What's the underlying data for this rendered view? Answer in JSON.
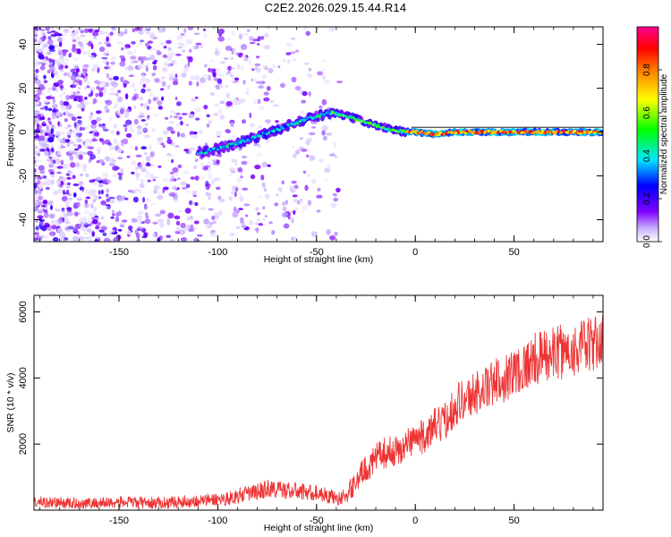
{
  "title": "C2E2.2026.029.15.44.R14",
  "chart_data": [
    {
      "type": "heatmap",
      "title": "C2E2.2026.029.15.44.R14",
      "xlabel": "Height of straight line (km)",
      "ylabel": "Frequency (Hz)",
      "xlim": [
        -193,
        95
      ],
      "ylim": [
        -50,
        48
      ],
      "xticks": [
        -150,
        -100,
        -50,
        0,
        50
      ],
      "xtick_labels": [
        "-150",
        "-100",
        "-50",
        "0",
        "50"
      ],
      "yticks": [
        -40,
        -20,
        0,
        20,
        40
      ],
      "ytick_labels": [
        "-40",
        "-20",
        "0",
        "20",
        "40"
      ],
      "colorbar": {
        "label": "Normalized spectral amplitude",
        "range": [
          0.0,
          1.0
        ],
        "ticks": [
          0.0,
          0.2,
          0.4,
          0.6,
          0.8
        ],
        "tick_labels": [
          "0.0",
          "0.2",
          "0.4",
          "0.6",
          "0.8"
        ],
        "colors": [
          "#ffffff",
          "#7f00ff",
          "#0000ff",
          "#00ffff",
          "#00ff00",
          "#ffff00",
          "#ff8000",
          "#ff0000",
          "#ff00ff"
        ]
      },
      "signal_track": [
        {
          "x": -110,
          "y": -10
        },
        {
          "x": -90,
          "y": -5
        },
        {
          "x": -70,
          "y": 1
        },
        {
          "x": -55,
          "y": 6
        },
        {
          "x": -42,
          "y": 9
        },
        {
          "x": -30,
          "y": 6
        },
        {
          "x": -20,
          "y": 3
        },
        {
          "x": -10,
          "y": 0.5
        },
        {
          "x": 0,
          "y": 0
        },
        {
          "x": 10,
          "y": -1
        },
        {
          "x": 20,
          "y": 0
        },
        {
          "x": 50,
          "y": 0
        },
        {
          "x": 95,
          "y": 0
        }
      ],
      "noise_region_xlim": [
        -193,
        -40
      ]
    },
    {
      "type": "line",
      "xlabel": "Height of straight line (km)",
      "ylabel": "SNR (10 * v/v)",
      "xlim": [
        -193,
        95
      ],
      "ylim": [
        0,
        6500
      ],
      "xticks": [
        -150,
        -100,
        -50,
        0,
        50
      ],
      "xtick_labels": [
        "-150",
        "-100",
        "-50",
        "0",
        "50"
      ],
      "yticks": [
        2000,
        4000,
        6000
      ],
      "ytick_labels": [
        "2000",
        "4000",
        "6000"
      ],
      "line_color": "#ee3333",
      "series": [
        {
          "name": "SNR",
          "x": [
            -193,
            -170,
            -150,
            -130,
            -110,
            -95,
            -85,
            -80,
            -75,
            -65,
            -55,
            -48,
            -42,
            -38,
            -34,
            -30,
            -26,
            -22,
            -18,
            -14,
            -10,
            -6,
            -2,
            2,
            6,
            10,
            14,
            18,
            22,
            26,
            30,
            35,
            40,
            45,
            50,
            55,
            60,
            65,
            70,
            75,
            80,
            85,
            90,
            95
          ],
          "values": [
            250,
            200,
            240,
            220,
            280,
            350,
            500,
            550,
            650,
            600,
            550,
            500,
            400,
            350,
            500,
            900,
            1200,
            1400,
            1700,
            1750,
            1800,
            1850,
            2150,
            2200,
            2250,
            2550,
            2600,
            3000,
            3300,
            3350,
            3550,
            3650,
            3850,
            4000,
            4200,
            4350,
            4550,
            4650,
            4750,
            4800,
            4850,
            4950,
            5000,
            5150
          ]
        }
      ]
    }
  ]
}
